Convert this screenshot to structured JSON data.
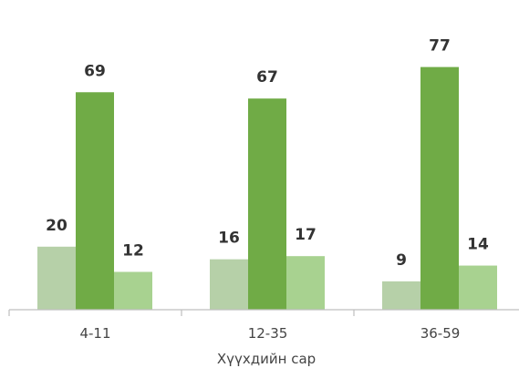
{
  "chart_data": {
    "type": "bar",
    "categories": [
      "4-11",
      "12-35",
      "36-59"
    ],
    "series": [
      {
        "values": [
          20,
          16,
          9
        ],
        "color": "#b6d0a8"
      },
      {
        "values": [
          69,
          67,
          77
        ],
        "color": "#70ab46"
      },
      {
        "values": [
          12,
          17,
          14
        ],
        "color": "#a8d290"
      }
    ],
    "xlabel": "Хүүхдийн сар",
    "ylabel": "",
    "ylim": [
      0,
      85
    ],
    "grid": false,
    "legend": "none"
  }
}
